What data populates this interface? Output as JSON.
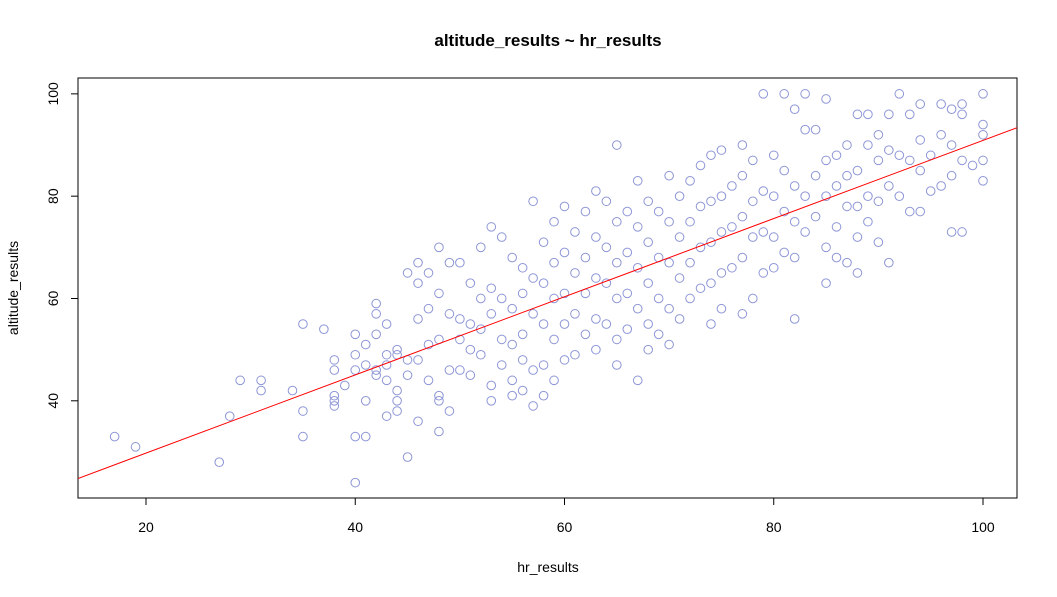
{
  "chart_data": {
    "type": "scatter",
    "title": "altitude_results ~ hr_results",
    "x_label": "hr_results",
    "y_label": "altitude_results",
    "xlim": [
      13.5,
      103.25
    ],
    "ylim": [
      21.0,
      103.1
    ],
    "xticks": [
      20,
      40,
      60,
      80,
      100
    ],
    "yticks": [
      40,
      60,
      80,
      100
    ],
    "color": "#8e96d6",
    "x": [
      17,
      19,
      27,
      28,
      29,
      31,
      31,
      34,
      35,
      35,
      35,
      37,
      38,
      38,
      38,
      38,
      38,
      39,
      40,
      40,
      40,
      40,
      40,
      41,
      41,
      41,
      41,
      42,
      42,
      42,
      42,
      42,
      43,
      43,
      43,
      43,
      43,
      44,
      44,
      44,
      44,
      44,
      45,
      45,
      45,
      45,
      46,
      46,
      46,
      46,
      46,
      47,
      47,
      47,
      47,
      48,
      48,
      48,
      48,
      48,
      48,
      49,
      49,
      49,
      49,
      50,
      50,
      50,
      50,
      51,
      51,
      51,
      51,
      52,
      52,
      52,
      52,
      53,
      53,
      53,
      53,
      53,
      54,
      54,
      54,
      54,
      55,
      55,
      55,
      55,
      55,
      56,
      56,
      56,
      56,
      56,
      57,
      57,
      57,
      57,
      57,
      58,
      58,
      58,
      58,
      58,
      59,
      59,
      59,
      59,
      59,
      60,
      60,
      60,
      60,
      60,
      61,
      61,
      61,
      61,
      62,
      62,
      62,
      62,
      63,
      63,
      63,
      63,
      63,
      64,
      64,
      64,
      64,
      65,
      65,
      65,
      65,
      65,
      65,
      66,
      66,
      66,
      66,
      67,
      67,
      67,
      67,
      67,
      68,
      68,
      68,
      68,
      68,
      69,
      69,
      69,
      69,
      70,
      70,
      70,
      70,
      70,
      71,
      71,
      71,
      71,
      72,
      72,
      72,
      72,
      73,
      73,
      73,
      73,
      74,
      74,
      74,
      74,
      74,
      75,
      75,
      75,
      75,
      75,
      76,
      76,
      76,
      77,
      77,
      77,
      77,
      77,
      78,
      78,
      78,
      78,
      79,
      79,
      79,
      79,
      80,
      80,
      80,
      80,
      81,
      81,
      81,
      81,
      82,
      82,
      82,
      82,
      82,
      83,
      83,
      83,
      83,
      84,
      84,
      84,
      85,
      85,
      85,
      85,
      85,
      86,
      86,
      86,
      86,
      87,
      87,
      87,
      87,
      88,
      88,
      88,
      88,
      88,
      89,
      89,
      89,
      89,
      90,
      90,
      90,
      90,
      91,
      91,
      91,
      91,
      92,
      92,
      92,
      93,
      93,
      93,
      94,
      94,
      94,
      94,
      95,
      95,
      96,
      96,
      96,
      97,
      97,
      97,
      97,
      98,
      98,
      98,
      98,
      99,
      100,
      100,
      100,
      100,
      100
    ],
    "y": [
      33,
      31,
      28,
      37,
      44,
      44,
      42,
      42,
      55,
      38,
      33,
      54,
      48,
      46,
      41,
      40,
      39,
      43,
      53,
      49,
      46,
      33,
      24,
      47,
      40,
      33,
      51,
      59,
      57,
      53,
      46,
      45,
      55,
      49,
      47,
      44,
      37,
      50,
      49,
      42,
      40,
      38,
      65,
      48,
      45,
      29,
      67,
      63,
      56,
      48,
      36,
      65,
      58,
      51,
      44,
      70,
      61,
      52,
      41,
      40,
      34,
      67,
      57,
      46,
      38,
      67,
      56,
      52,
      46,
      63,
      55,
      50,
      45,
      70,
      60,
      54,
      49,
      74,
      62,
      57,
      43,
      40,
      72,
      60,
      52,
      47,
      68,
      58,
      51,
      44,
      41,
      66,
      61,
      53,
      48,
      42,
      79,
      64,
      57,
      46,
      39,
      71,
      63,
      55,
      47,
      41,
      75,
      67,
      60,
      52,
      44,
      78,
      69,
      61,
      55,
      48,
      73,
      65,
      57,
      49,
      77,
      68,
      61,
      53,
      81,
      72,
      64,
      56,
      50,
      79,
      70,
      63,
      55,
      90,
      75,
      67,
      60,
      52,
      47,
      77,
      69,
      61,
      54,
      83,
      74,
      66,
      58,
      44,
      79,
      71,
      63,
      55,
      50,
      77,
      68,
      60,
      53,
      84,
      75,
      67,
      58,
      51,
      80,
      72,
      64,
      56,
      83,
      75,
      67,
      60,
      86,
      78,
      70,
      62,
      88,
      79,
      71,
      63,
      55,
      89,
      80,
      73,
      65,
      58,
      82,
      74,
      66,
      90,
      84,
      76,
      68,
      57,
      87,
      79,
      72,
      60,
      100,
      81,
      73,
      65,
      88,
      80,
      72,
      66,
      100,
      85,
      77,
      69,
      97,
      82,
      75,
      68,
      56,
      100,
      93,
      80,
      73,
      93,
      84,
      76,
      99,
      87,
      80,
      70,
      63,
      88,
      82,
      74,
      68,
      90,
      84,
      78,
      67,
      96,
      85,
      78,
      72,
      65,
      96,
      90,
      80,
      75,
      92,
      87,
      79,
      71,
      96,
      89,
      82,
      67,
      100,
      88,
      80,
      96,
      87,
      77,
      98,
      91,
      85,
      77,
      88,
      81,
      98,
      92,
      82,
      97,
      90,
      84,
      73,
      98,
      96,
      87,
      73,
      86,
      100,
      94,
      92,
      87,
      83
    ],
    "abline": {
      "intercept": 14.5,
      "slope": 0.764,
      "color": "#ff0000"
    }
  }
}
